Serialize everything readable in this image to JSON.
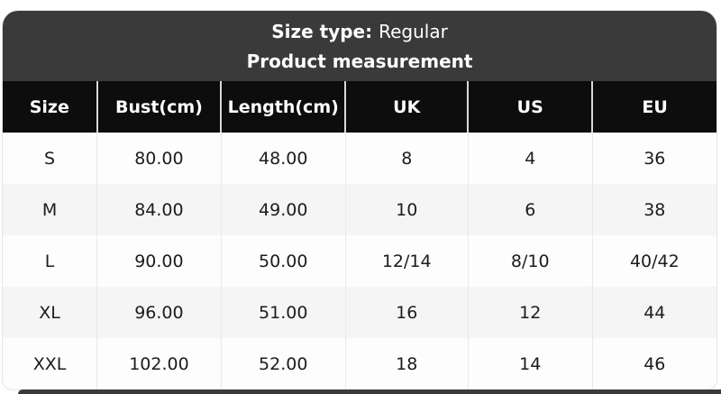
{
  "section_header": {
    "size_type_label": "Size type:",
    "size_type_value": "Regular",
    "title": "Product measurement"
  },
  "size_table": {
    "columns": [
      "Size",
      "Bust(cm)",
      "Length(cm)",
      "UK",
      "US",
      "EU"
    ],
    "rows": [
      [
        "S",
        "80.00",
        "48.00",
        "8",
        "4",
        "36"
      ],
      [
        "M",
        "84.00",
        "49.00",
        "10",
        "6",
        "38"
      ],
      [
        "L",
        "90.00",
        "50.00",
        "12/14",
        "8/10",
        "40/42"
      ],
      [
        "XL",
        "96.00",
        "51.00",
        "16",
        "12",
        "44"
      ],
      [
        "XXL",
        "102.00",
        "52.00",
        "18",
        "14",
        "46"
      ]
    ]
  },
  "colors": {
    "header_bg": "#3a3a3a",
    "table_header_bg": "#0d0d0d",
    "table_header_text": "#ffffff",
    "row_bg": "#fdfdfd",
    "row_alt_bg": "#f5f5f5",
    "body_text": "#1c1c1c",
    "border": "#e4e4e4"
  }
}
